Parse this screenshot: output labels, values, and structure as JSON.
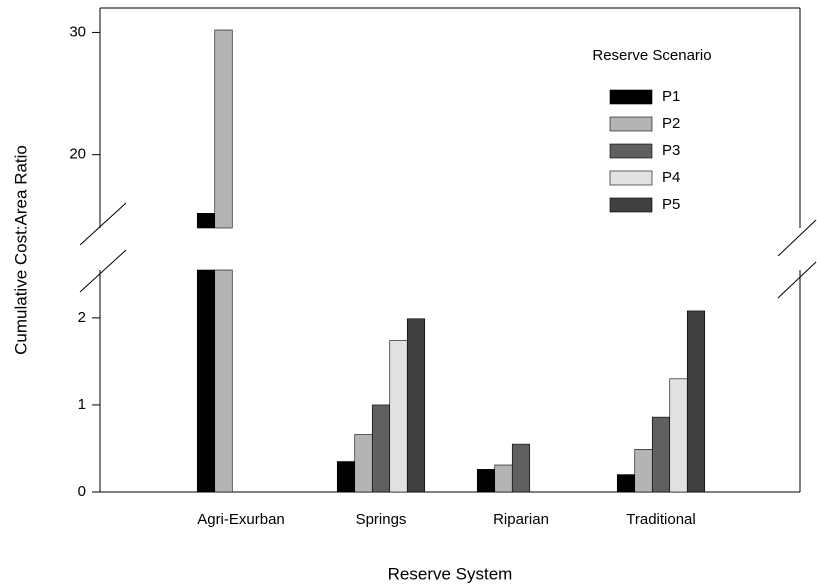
{
  "chart_data": {
    "type": "bar",
    "x_label": "Reserve System",
    "y_label": "Cumulative Cost:Area Ratio",
    "legend_title": "Reserve Scenario",
    "legend": "upper right",
    "categories": [
      "Agri-Exurban",
      "Springs",
      "Riparian",
      "Traditional"
    ],
    "series": [
      {
        "name": "P1",
        "color": "#000000",
        "values": [
          15.2,
          0.35,
          0.26,
          0.2
        ]
      },
      {
        "name": "P2",
        "color": "#b4b4b4",
        "values": [
          30.2,
          0.66,
          0.31,
          0.49
        ]
      },
      {
        "name": "P3",
        "color": "#606060",
        "values": [
          null,
          1.0,
          0.55,
          0.86
        ]
      },
      {
        "name": "P4",
        "color": "#e2e2e2",
        "values": [
          null,
          1.74,
          null,
          1.3
        ]
      },
      {
        "name": "P5",
        "color": "#404040",
        "values": [
          null,
          1.99,
          null,
          2.08
        ]
      }
    ],
    "ylim": [
      0,
      32
    ],
    "y_break": [
      2.55,
      14
    ],
    "yticks": [
      0,
      1,
      2,
      20,
      30
    ]
  }
}
